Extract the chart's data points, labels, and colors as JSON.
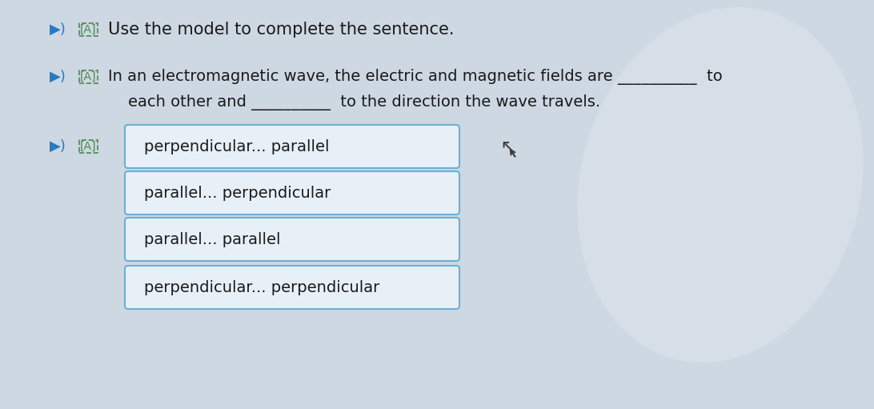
{
  "bg_color": "#cdd8e3",
  "title_line": "Use the model to complete the sentence.",
  "question_line1": "In an electromagnetic wave, the electric and magnetic fields are __________  to",
  "question_line2": "each other and __________  to the direction the wave travels.",
  "options": [
    "perpendicular... parallel",
    "parallel... perpendicular",
    "parallel... parallel",
    "perpendicular... perpendicular"
  ],
  "box_facecolor": "#e8f0f7",
  "box_edgecolor": "#6ab0d4",
  "text_color": "#1a1a1a",
  "title_color": "#1a1a1a",
  "speaker_color": "#2a7abf",
  "font_size_title": 15,
  "font_size_question": 14,
  "font_size_options": 14,
  "font_size_icons": 13
}
